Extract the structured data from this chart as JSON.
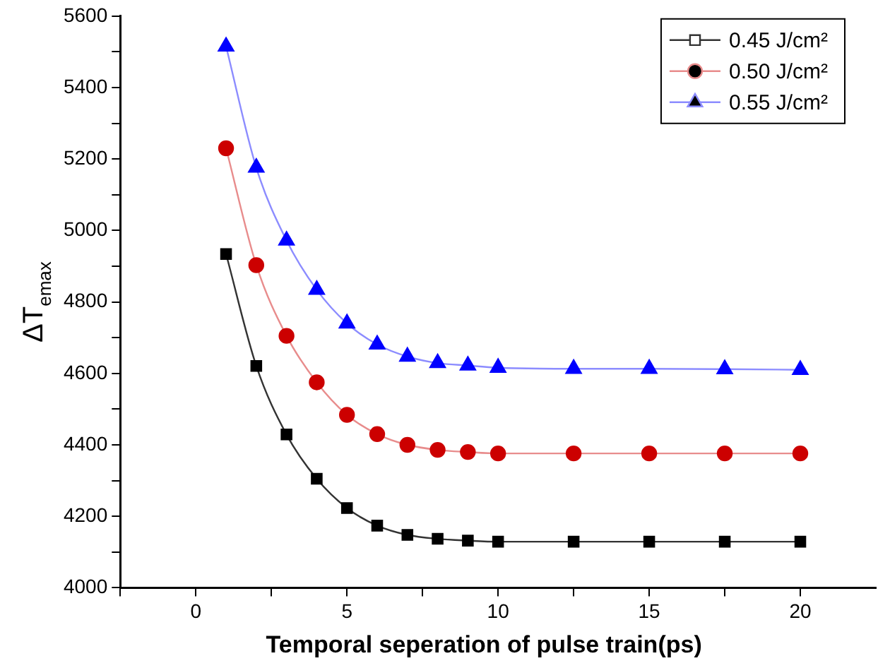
{
  "chart_data": {
    "type": "line",
    "xlabel": "Temporal seperation of pulse train(ps)",
    "ylabel": "ΔT$_{emax}$",
    "x": [
      1,
      2,
      3,
      4,
      5,
      6,
      7,
      8,
      9,
      10,
      12.5,
      15,
      17.5,
      20
    ],
    "xlim": [
      -2.5,
      22.5
    ],
    "xticks": [
      {
        "value": -2.5,
        "label": null
      },
      0,
      {
        "value": 2.5,
        "label": null
      },
      {
        "value": 5,
        "label": "5"
      },
      {
        "value": 7.5,
        "label": null
      },
      {
        "value": 10,
        "label": "10"
      },
      {
        "value": 12.5,
        "label": null
      },
      {
        "value": 15,
        "label": "15"
      },
      {
        "value": 17.5,
        "label": null
      },
      {
        "value": 20,
        "label": "20"
      }
    ],
    "ylim": [
      4000,
      5600
    ],
    "yticks": [
      4000,
      {
        "value": 4100,
        "label": null
      },
      4200,
      {
        "value": 4300,
        "label": null
      },
      4400,
      {
        "value": 4500,
        "label": null
      },
      4600,
      {
        "value": 4700,
        "label": null
      },
      4800,
      {
        "value": 4900,
        "label": null
      },
      5000,
      {
        "value": 5100,
        "label": null
      },
      5200,
      {
        "value": 5300,
        "label": null
      },
      5400,
      {
        "value": 5500,
        "label": null
      },
      5600
    ],
    "series": [
      {
        "name": "0.45 J/cm²",
        "color": "#000000",
        "marker": "square",
        "values": [
          4934,
          4621,
          4429,
          4305,
          4223,
          4174,
          4148,
          4137,
          4132,
          4129,
          4129,
          4129,
          4129,
          4129
        ]
      },
      {
        "name": "0.50 J/cm²",
        "color": "#cc0000",
        "marker": "circle",
        "values": [
          5230,
          4903,
          4705,
          4575,
          4484,
          4430,
          4400,
          4386,
          4380,
          4376,
          4376,
          4376,
          4376,
          4376
        ]
      },
      {
        "name": "0.55 J/cm²",
        "color": "#0000ff",
        "marker": "triangle",
        "values": [
          5515,
          5176,
          4972,
          4834,
          4740,
          4681,
          4647,
          4629,
          4622,
          4616,
          4613,
          4613,
          4612,
          4610
        ]
      }
    ],
    "legend": "top right",
    "grid": false,
    "line_style": "solid"
  }
}
